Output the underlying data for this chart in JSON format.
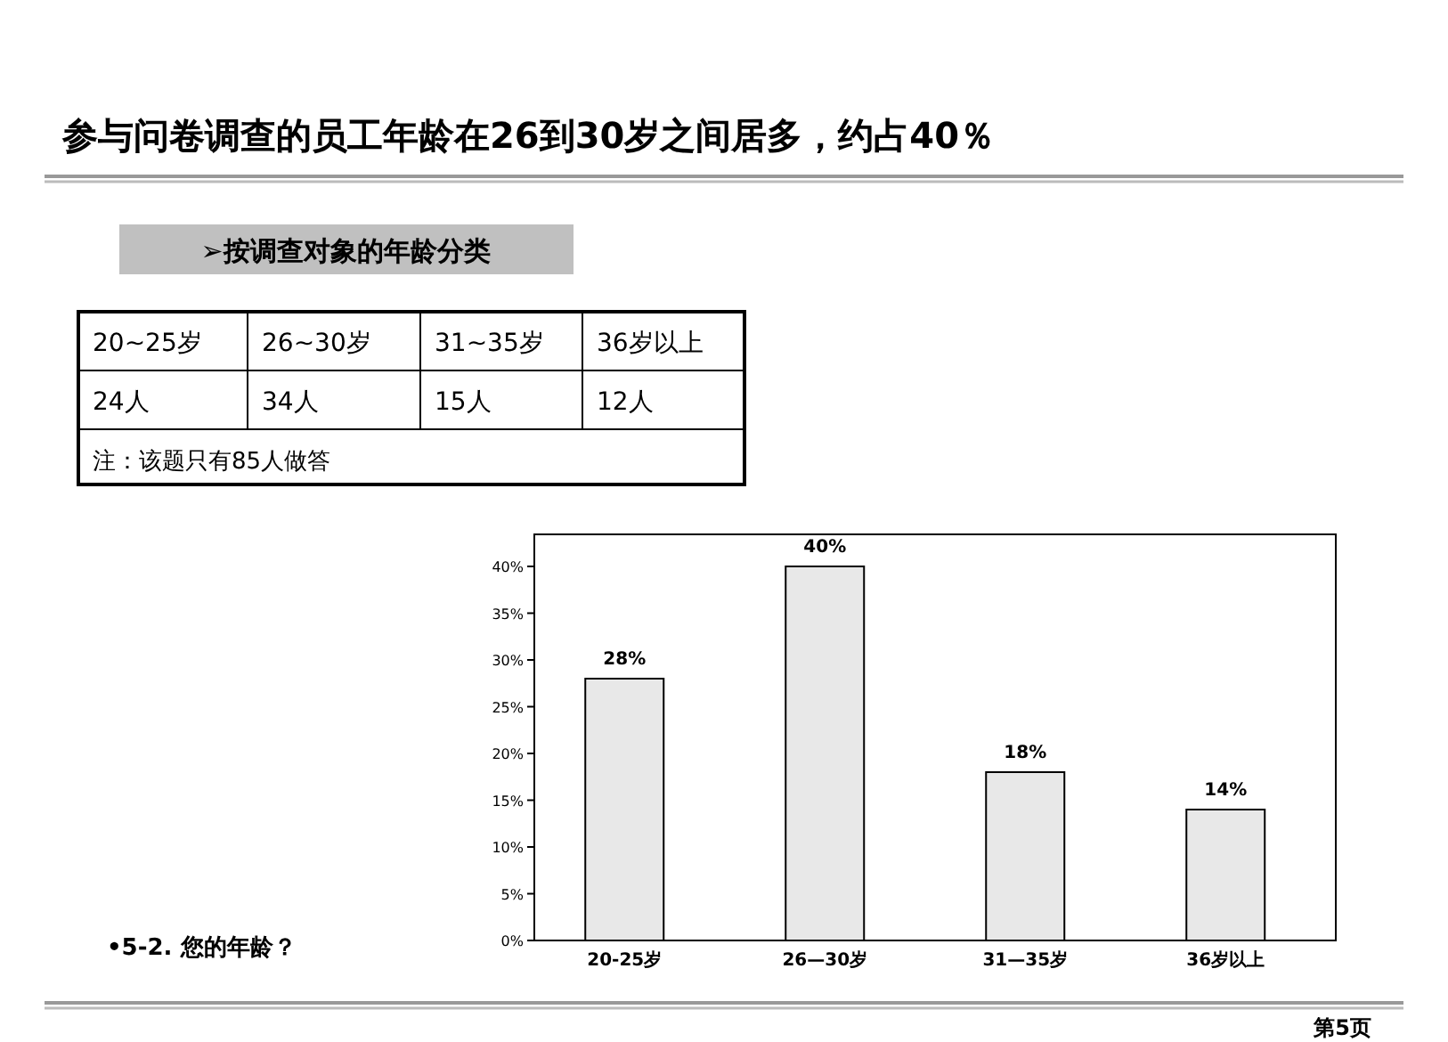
{
  "chart_data": {
    "type": "bar",
    "title": "参与问卷调查的员工年龄在26到30岁之间居多，约占40％",
    "subtitle": "➢按调查对象的年龄分类",
    "categories": [
      "20-25岁",
      "26—30岁",
      "31—35岁",
      "36岁以上"
    ],
    "values": [
      28,
      40,
      18,
      14
    ],
    "color": "#e8e8e8",
    "value_labels": [
      "28%",
      "40%",
      "18%",
      "14%"
    ],
    "ylim": [
      0,
      40
    ],
    "yticks": [
      {
        "value": 0,
        "label": "0%"
      },
      {
        "value": 5,
        "label": "5%"
      },
      {
        "value": 10,
        "label": "10%"
      },
      {
        "value": 15,
        "label": "15%"
      },
      {
        "value": 20,
        "label": "20%"
      },
      {
        "value": 25,
        "label": "25%"
      },
      {
        "value": 30,
        "label": "30%"
      },
      {
        "value": 35,
        "label": "35%"
      },
      {
        "value": 40,
        "label": "40%"
      }
    ],
    "grid": false,
    "annotations": [
      "20~25岁",
      "26~30岁",
      "31~35岁",
      "36岁以上",
      "24人",
      "34人",
      "15人",
      "12人",
      "注：该题只有85人做答",
      "•5-2. 您的年龄？",
      "第5页"
    ]
  }
}
